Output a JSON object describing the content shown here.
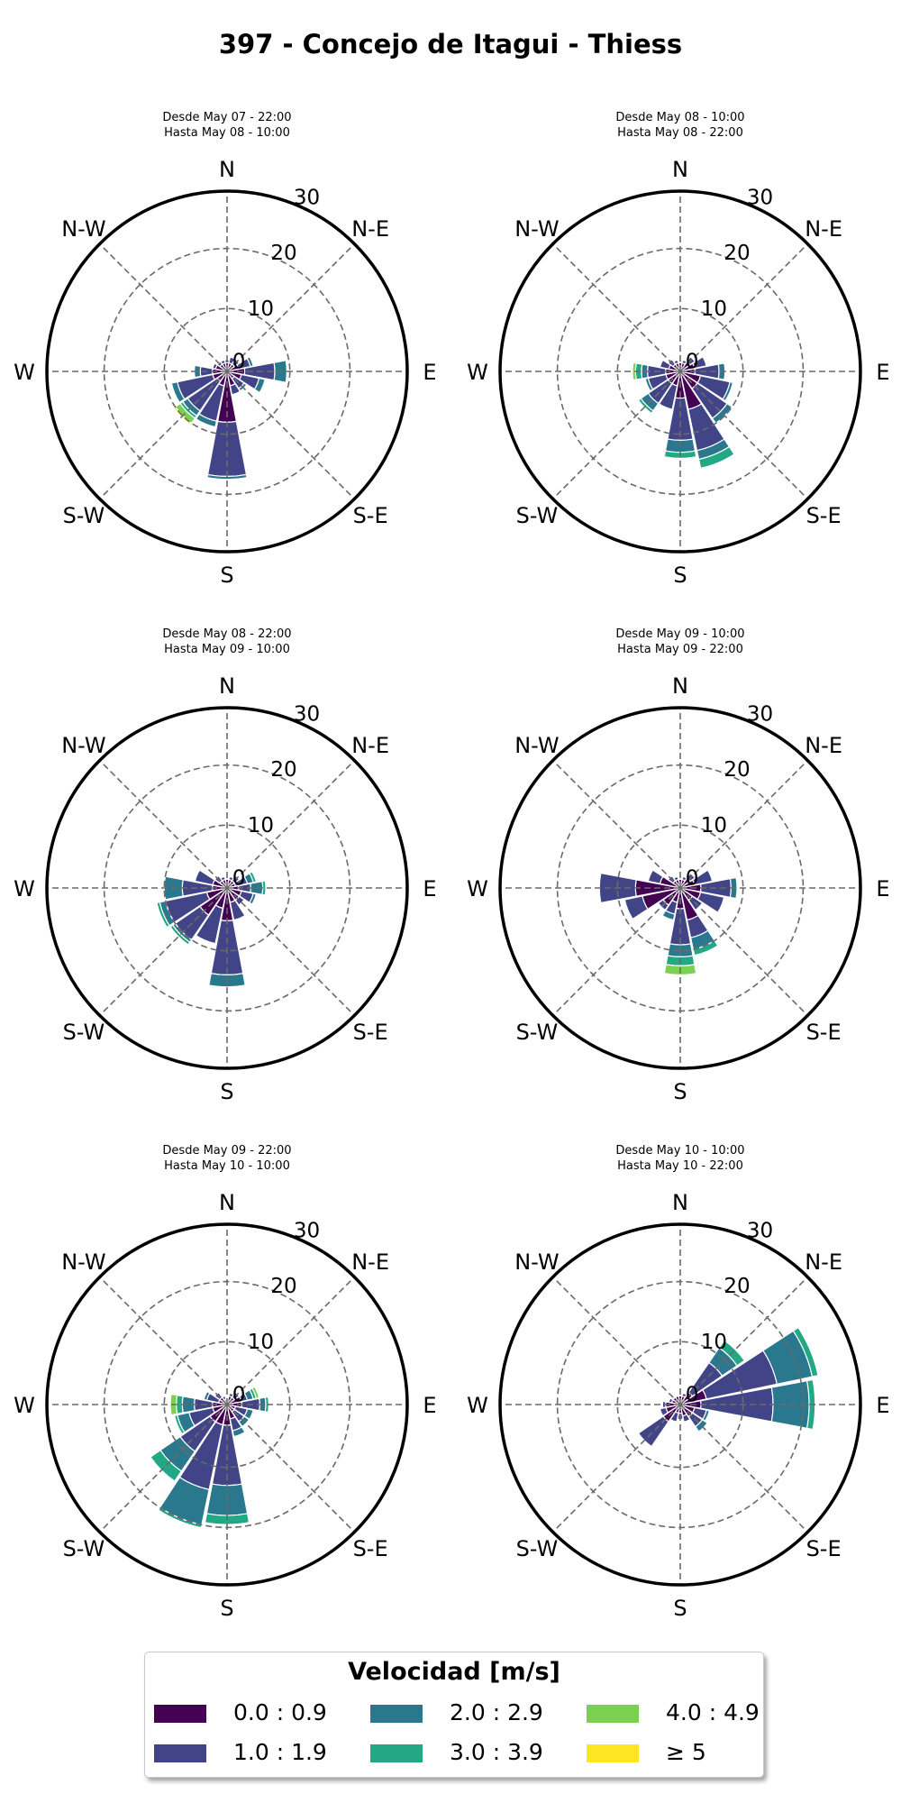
{
  "title": "397 - Concejo de Itagui - Thiess",
  "legend": {
    "title": "Velocidad [m/s]",
    "items": [
      {
        "label": "0.0 : 0.9",
        "color": "#440154"
      },
      {
        "label": "1.0 : 1.9",
        "color": "#414487"
      },
      {
        "label": "2.0 : 2.9",
        "color": "#2a788e"
      },
      {
        "label": "3.0 : 3.9",
        "color": "#22a884"
      },
      {
        "label": "4.0 : 4.9",
        "color": "#7ad151"
      },
      {
        "label": "≥  5",
        "color": "#fde725"
      }
    ]
  },
  "chart_data": [
    {
      "type": "windrose",
      "subtitle": [
        "Desde May 07 - 22:00",
        "Hasta May 08 - 10:00"
      ],
      "rmax": 30,
      "rticks": [
        0,
        10,
        20,
        30
      ],
      "directions": [
        "N",
        "N-E",
        "E",
        "S-E",
        "S",
        "S-W",
        "W",
        "N-W"
      ],
      "sectors": [
        {
          "dir": 0,
          "values": [
            1,
            0.5,
            0,
            0,
            0,
            0
          ]
        },
        {
          "dir": 22.5,
          "values": [
            1,
            1,
            0,
            0,
            0,
            0
          ]
        },
        {
          "dir": 45,
          "values": [
            1,
            1,
            0,
            0,
            0,
            0
          ]
        },
        {
          "dir": 67.5,
          "values": [
            1.5,
            2,
            0.5,
            0,
            0,
            0
          ]
        },
        {
          "dir": 90,
          "values": [
            2.5,
            5,
            2,
            0,
            0,
            0
          ]
        },
        {
          "dir": 112.5,
          "values": [
            2,
            3,
            1,
            0,
            0,
            0
          ]
        },
        {
          "dir": 135,
          "values": [
            1,
            2,
            0.5,
            0,
            0,
            0
          ]
        },
        {
          "dir": 157.5,
          "values": [
            2,
            1.5,
            0,
            0,
            0,
            0
          ]
        },
        {
          "dir": 180,
          "values": [
            8,
            9,
            0.5,
            0,
            0,
            0
          ]
        },
        {
          "dir": 202.5,
          "values": [
            2,
            6,
            1,
            0,
            0,
            0
          ]
        },
        {
          "dir": 225,
          "values": [
            1.5,
            6,
            1,
            0.5,
            1,
            0.3
          ]
        },
        {
          "dir": 247.5,
          "values": [
            2,
            6,
            1,
            0,
            0,
            0
          ]
        },
        {
          "dir": 270,
          "values": [
            2,
            2,
            1,
            0,
            0,
            0
          ]
        },
        {
          "dir": 292.5,
          "values": [
            1.5,
            0.5,
            0,
            0,
            0,
            0
          ]
        },
        {
          "dir": 315,
          "values": [
            1,
            0.5,
            0,
            0,
            0,
            0
          ]
        },
        {
          "dir": 337.5,
          "values": [
            1,
            0.5,
            0,
            0,
            0,
            0
          ]
        }
      ]
    },
    {
      "type": "windrose",
      "subtitle": [
        "Desde May 08 - 10:00",
        "Hasta May 08 - 22:00"
      ],
      "rmax": 30,
      "rticks": [
        0,
        10,
        20,
        30
      ],
      "directions": [
        "N",
        "N-E",
        "E",
        "S-E",
        "S",
        "S-W",
        "W",
        "N-W"
      ],
      "sectors": [
        {
          "dir": 0,
          "values": [
            1,
            0,
            0,
            0,
            0,
            0
          ]
        },
        {
          "dir": 22.5,
          "values": [
            1,
            0.5,
            0,
            0,
            0,
            0
          ]
        },
        {
          "dir": 45,
          "values": [
            1.5,
            1,
            0,
            0,
            0,
            0
          ]
        },
        {
          "dir": 67.5,
          "values": [
            2,
            2,
            0,
            0,
            0,
            0
          ]
        },
        {
          "dir": 90,
          "values": [
            2,
            4,
            1,
            0,
            0,
            0
          ]
        },
        {
          "dir": 112.5,
          "values": [
            3,
            5,
            0.5,
            0,
            0,
            0
          ]
        },
        {
          "dir": 135,
          "values": [
            3,
            6,
            1,
            0,
            0,
            0
          ]
        },
        {
          "dir": 157.5,
          "values": [
            6,
            7,
            1.5,
            1.5,
            0,
            0
          ]
        },
        {
          "dir": 180,
          "values": [
            4,
            7,
            2,
            1,
            0,
            0
          ]
        },
        {
          "dir": 202.5,
          "values": [
            2,
            4,
            0,
            0,
            0,
            0
          ]
        },
        {
          "dir": 225,
          "values": [
            2,
            4,
            1.5,
            0.5,
            0,
            0
          ]
        },
        {
          "dir": 247.5,
          "values": [
            2,
            3,
            0.5,
            0,
            0,
            0
          ]
        },
        {
          "dir": 270,
          "values": [
            2,
            3,
            1,
            1,
            0.5,
            0
          ]
        },
        {
          "dir": 292.5,
          "values": [
            1.5,
            1.5,
            0,
            0,
            0,
            0
          ]
        },
        {
          "dir": 315,
          "values": [
            1,
            1,
            0,
            0,
            0,
            0
          ]
        },
        {
          "dir": 337.5,
          "values": [
            1,
            0.5,
            0,
            0,
            0,
            0
          ]
        }
      ]
    },
    {
      "type": "windrose",
      "subtitle": [
        "Desde May 08 - 22:00",
        "Hasta May 09 - 10:00"
      ],
      "rmax": 30,
      "rticks": [
        0,
        10,
        20,
        30
      ],
      "directions": [
        "N",
        "N-E",
        "E",
        "S-E",
        "S",
        "S-W",
        "W",
        "N-W"
      ],
      "sectors": [
        {
          "dir": 0,
          "values": [
            1,
            0,
            0,
            0,
            0,
            0
          ]
        },
        {
          "dir": 22.5,
          "values": [
            1,
            0.5,
            0,
            0,
            0,
            0
          ]
        },
        {
          "dir": 45,
          "values": [
            1,
            1,
            0,
            0,
            0,
            0
          ]
        },
        {
          "dir": 67.5,
          "values": [
            1,
            2,
            1,
            0.5,
            0,
            0
          ]
        },
        {
          "dir": 90,
          "values": [
            1.5,
            2,
            2,
            0.5,
            0,
            0
          ]
        },
        {
          "dir": 112.5,
          "values": [
            2,
            2,
            0.5,
            0,
            0,
            0
          ]
        },
        {
          "dir": 135,
          "values": [
            2,
            1,
            0,
            0,
            0,
            0
          ]
        },
        {
          "dir": 157.5,
          "values": [
            2,
            3,
            0,
            0,
            0,
            0
          ]
        },
        {
          "dir": 180,
          "values": [
            5,
            9,
            2,
            0,
            0,
            0
          ]
        },
        {
          "dir": 202.5,
          "values": [
            3,
            6,
            0,
            0,
            0,
            0
          ]
        },
        {
          "dir": 225,
          "values": [
            5,
            5,
            0.5,
            0.5,
            0,
            0
          ]
        },
        {
          "dir": 247.5,
          "values": [
            3,
            7,
            1,
            0.5,
            0,
            0
          ]
        },
        {
          "dir": 270,
          "values": [
            2,
            5,
            3,
            0,
            0,
            0
          ]
        },
        {
          "dir": 292.5,
          "values": [
            2,
            3,
            0,
            0,
            0,
            0
          ]
        },
        {
          "dir": 315,
          "values": [
            1,
            1,
            0,
            0,
            0,
            0
          ]
        },
        {
          "dir": 337.5,
          "values": [
            1,
            0.5,
            0,
            0,
            0,
            0
          ]
        }
      ]
    },
    {
      "type": "windrose",
      "subtitle": [
        "Desde May 09 - 10:00",
        "Hasta May 09 - 22:00"
      ],
      "rmax": 30,
      "rticks": [
        0,
        10,
        20,
        30
      ],
      "directions": [
        "N",
        "N-E",
        "E",
        "S-E",
        "S",
        "S-W",
        "W",
        "N-W"
      ],
      "sectors": [
        {
          "dir": 0,
          "values": [
            1,
            0,
            0,
            0,
            0,
            0
          ]
        },
        {
          "dir": 22.5,
          "values": [
            1,
            0.5,
            0,
            0,
            0,
            0
          ]
        },
        {
          "dir": 45,
          "values": [
            1.5,
            1,
            0,
            0,
            0,
            0
          ]
        },
        {
          "dir": 67.5,
          "values": [
            2,
            3,
            0,
            0,
            0,
            0
          ]
        },
        {
          "dir": 90,
          "values": [
            3,
            5,
            1,
            0,
            0,
            0
          ]
        },
        {
          "dir": 112.5,
          "values": [
            3,
            4,
            0,
            0,
            0,
            0
          ]
        },
        {
          "dir": 135,
          "values": [
            2,
            2,
            0,
            0,
            0,
            0
          ]
        },
        {
          "dir": 157.5,
          "values": [
            5,
            3,
            2,
            1,
            0,
            0
          ]
        },
        {
          "dir": 180,
          "values": [
            3,
            6,
            2,
            1.5,
            1.5,
            0
          ]
        },
        {
          "dir": 202.5,
          "values": [
            2,
            2,
            1,
            0,
            0,
            0
          ]
        },
        {
          "dir": 225,
          "values": [
            3,
            1,
            0,
            0,
            0,
            0
          ]
        },
        {
          "dir": 247.5,
          "values": [
            6,
            3,
            0,
            0,
            0,
            0
          ]
        },
        {
          "dir": 270,
          "values": [
            7,
            6,
            0,
            0,
            0,
            0
          ]
        },
        {
          "dir": 292.5,
          "values": [
            3,
            2,
            0,
            0,
            0,
            0
          ]
        },
        {
          "dir": 315,
          "values": [
            1,
            1,
            0,
            0,
            0,
            0
          ]
        },
        {
          "dir": 337.5,
          "values": [
            1,
            0.5,
            0,
            0,
            0,
            0
          ]
        }
      ]
    },
    {
      "type": "windrose",
      "subtitle": [
        "Desde May 09 - 22:00",
        "Hasta May 10 - 10:00"
      ],
      "rmax": 30,
      "rticks": [
        0,
        10,
        20,
        30
      ],
      "directions": [
        "N",
        "N-E",
        "E",
        "S-E",
        "S",
        "S-W",
        "W",
        "N-W"
      ],
      "sectors": [
        {
          "dir": 0,
          "values": [
            0.5,
            0,
            0,
            0,
            0,
            0
          ]
        },
        {
          "dir": 22.5,
          "values": [
            1,
            0.5,
            0,
            0,
            0,
            0
          ]
        },
        {
          "dir": 45,
          "values": [
            1,
            1,
            0,
            0,
            0,
            0
          ]
        },
        {
          "dir": 67.5,
          "values": [
            2,
            1,
            1,
            0.5,
            0.5,
            0
          ]
        },
        {
          "dir": 90,
          "values": [
            2,
            3,
            1,
            0.5,
            0,
            0
          ]
        },
        {
          "dir": 112.5,
          "values": [
            1,
            2,
            1,
            0,
            0,
            0
          ]
        },
        {
          "dir": 135,
          "values": [
            1,
            2,
            1,
            0,
            0,
            0
          ]
        },
        {
          "dir": 157.5,
          "values": [
            2,
            2,
            1,
            0,
            0,
            0
          ]
        },
        {
          "dir": 180,
          "values": [
            3,
            10,
            5,
            1.5,
            0,
            0
          ]
        },
        {
          "dir": 202.5,
          "values": [
            3,
            11,
            6,
            0.5,
            0,
            0
          ]
        },
        {
          "dir": 225,
          "values": [
            3,
            6,
            4,
            2,
            0,
            0
          ]
        },
        {
          "dir": 247.5,
          "values": [
            2,
            4,
            2,
            0.5,
            0,
            0
          ]
        },
        {
          "dir": 270,
          "values": [
            2,
            3,
            2,
            1,
            1,
            0
          ]
        },
        {
          "dir": 292.5,
          "values": [
            1,
            2,
            0.5,
            0,
            0,
            0
          ]
        },
        {
          "dir": 315,
          "values": [
            1,
            1,
            0,
            0,
            0,
            0
          ]
        },
        {
          "dir": 337.5,
          "values": [
            0.5,
            0.5,
            0,
            0,
            0,
            0
          ]
        }
      ]
    },
    {
      "type": "windrose",
      "subtitle": [
        "Desde May 10 - 10:00",
        "Hasta May 10 - 22:00"
      ],
      "rmax": 30,
      "rticks": [
        0,
        10,
        20,
        30
      ],
      "directions": [
        "N",
        "N-E",
        "E",
        "S-E",
        "S",
        "S-W",
        "W",
        "N-W"
      ],
      "sectors": [
        {
          "dir": 0,
          "values": [
            1,
            0,
            0,
            0,
            0,
            0
          ]
        },
        {
          "dir": 22.5,
          "values": [
            1,
            0.5,
            0,
            0,
            0,
            0
          ]
        },
        {
          "dir": 45,
          "values": [
            2,
            6,
            3,
            1.5,
            0,
            0
          ]
        },
        {
          "dir": 67.5,
          "values": [
            4,
            12,
            6,
            1,
            0,
            0
          ]
        },
        {
          "dir": 90,
          "values": [
            3,
            12,
            6,
            1,
            0,
            0
          ]
        },
        {
          "dir": 112.5,
          "values": [
            2,
            2,
            0.5,
            0,
            0,
            0
          ]
        },
        {
          "dir": 135,
          "values": [
            2,
            2,
            1,
            0,
            0,
            0
          ]
        },
        {
          "dir": 157.5,
          "values": [
            1.5,
            1,
            0,
            0,
            0,
            0
          ]
        },
        {
          "dir": 180,
          "values": [
            1,
            1,
            0,
            0,
            0,
            0
          ]
        },
        {
          "dir": 202.5,
          "values": [
            1,
            1.5,
            0,
            0,
            0,
            0
          ]
        },
        {
          "dir": 225,
          "values": [
            3,
            5,
            0,
            0,
            0,
            0
          ]
        },
        {
          "dir": 247.5,
          "values": [
            2,
            1,
            0,
            0,
            0,
            0
          ]
        },
        {
          "dir": 270,
          "values": [
            2,
            0.5,
            0,
            0,
            0,
            0
          ]
        },
        {
          "dir": 292.5,
          "values": [
            1,
            0.5,
            0,
            0,
            0,
            0
          ]
        },
        {
          "dir": 315,
          "values": [
            1,
            0,
            0,
            0,
            0,
            0
          ]
        },
        {
          "dir": 337.5,
          "values": [
            1,
            0,
            0,
            0,
            0,
            0
          ]
        }
      ]
    }
  ]
}
